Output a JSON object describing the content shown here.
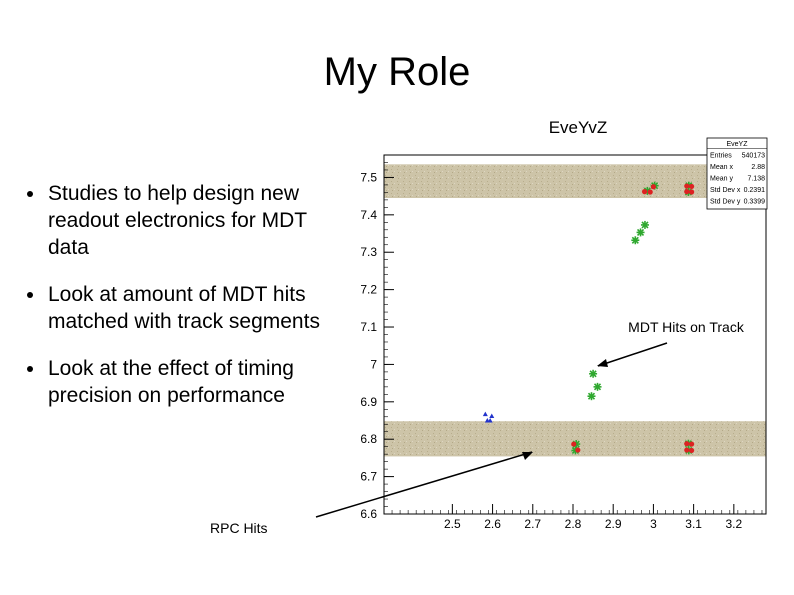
{
  "slide": {
    "title": "My Role",
    "bullets": [
      "Studies to help design new readout electronics for MDT data",
      "Look at amount of MDT hits matched with track segments",
      "Look at the effect of timing precision on performance"
    ],
    "rpc_label": "RPC Hits",
    "mdt_label": "MDT Hits on Track"
  },
  "chart_data": {
    "type": "scatter",
    "title": "EveYvZ",
    "xlabel": "",
    "ylabel": "",
    "xlim": [
      2.33,
      3.28
    ],
    "ylim": [
      6.6,
      7.56
    ],
    "x_ticks": [
      "2.5",
      "2.6",
      "2.7",
      "2.8",
      "2.9",
      "3",
      "3.1",
      "3.2"
    ],
    "y_ticks": [
      "6.6",
      "6.7",
      "6.8",
      "6.9",
      "7",
      "7.1",
      "7.2",
      "7.3",
      "7.4",
      "7.5"
    ],
    "grid": false,
    "bands": [
      {
        "y_range": [
          7.445,
          7.535
        ],
        "color": "#c9bfa3"
      },
      {
        "y_range": [
          6.754,
          6.848
        ],
        "color": "#c9bfa3"
      }
    ],
    "stats_box": {
      "title": "EveYZ",
      "rows": [
        {
          "label": "Entries",
          "value": "540173"
        },
        {
          "label": "Mean x",
          "value": "2.88"
        },
        {
          "label": "Mean y",
          "value": "7.138"
        },
        {
          "label": "Std Dev x",
          "value": "0.2391"
        },
        {
          "label": "Std Dev y",
          "value": "0.3399"
        }
      ]
    },
    "series": [
      {
        "marker": "star",
        "color": "#2fa82f",
        "points": [
          [
            2.985,
            7.464
          ],
          [
            3.003,
            7.478
          ],
          [
            3.087,
            7.461
          ],
          [
            3.088,
            7.478
          ],
          [
            2.955,
            7.332
          ],
          [
            2.968,
            7.353
          ],
          [
            2.979,
            7.373
          ],
          [
            2.85,
            6.975
          ],
          [
            2.861,
            6.94
          ],
          [
            2.846,
            6.915
          ],
          [
            2.808,
            6.787
          ],
          [
            2.806,
            6.77
          ],
          [
            3.087,
            6.788
          ],
          [
            3.088,
            6.77
          ]
        ]
      },
      {
        "marker": "circle",
        "color": "#dd2222",
        "points": [
          [
            2.978,
            7.462
          ],
          [
            2.992,
            7.461
          ],
          [
            3.0,
            7.475
          ],
          [
            3.083,
            7.462
          ],
          [
            3.095,
            7.461
          ],
          [
            3.083,
            7.477
          ],
          [
            3.095,
            7.476
          ],
          [
            2.802,
            6.787
          ],
          [
            2.812,
            6.771
          ],
          [
            3.083,
            6.788
          ],
          [
            3.095,
            6.787
          ],
          [
            3.083,
            6.771
          ],
          [
            3.095,
            6.77
          ]
        ]
      },
      {
        "marker": "triangle",
        "color": "#2233cc",
        "points": [
          [
            2.582,
            6.867
          ],
          [
            2.598,
            6.862
          ],
          [
            2.587,
            6.85
          ],
          [
            2.594,
            6.85
          ]
        ]
      }
    ]
  }
}
